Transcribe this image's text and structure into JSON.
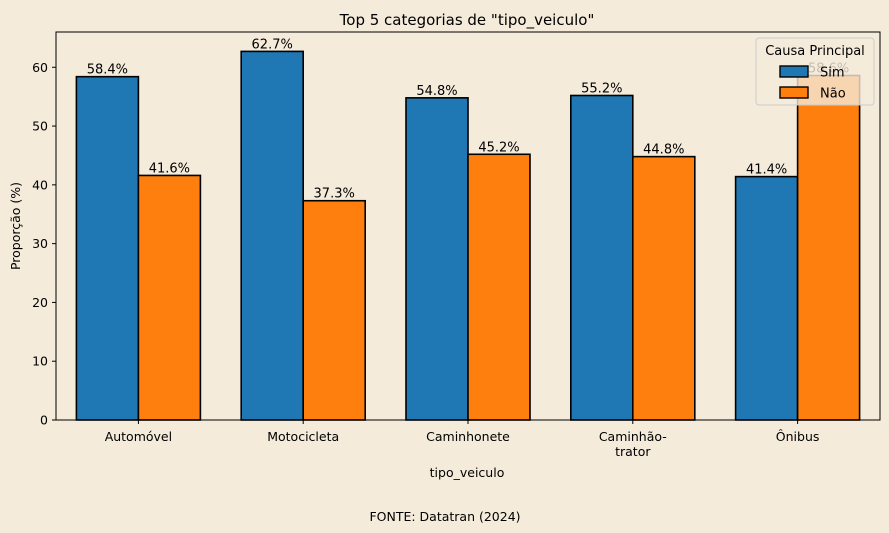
{
  "chart_data": {
    "type": "bar",
    "title": "Top 5 categorias de \"tipo_veiculo\"",
    "xlabel": "tipo_veiculo",
    "ylabel": "Proporção (%)",
    "categories": [
      [
        "Automóvel"
      ],
      [
        "Motocicleta"
      ],
      [
        "Caminhonete"
      ],
      [
        "Caminhão-",
        "trator"
      ],
      [
        "Ônibus"
      ]
    ],
    "series": [
      {
        "name": "Sim",
        "color": "#1f77b4",
        "values": [
          58.4,
          62.7,
          54.8,
          55.2,
          41.4
        ],
        "labels": [
          "58.4%",
          "62.7%",
          "54.8%",
          "55.2%",
          "41.4%"
        ]
      },
      {
        "name": "Não",
        "color": "#ff7f0e",
        "values": [
          41.6,
          37.3,
          45.2,
          44.8,
          58.6
        ],
        "labels": [
          "41.6%",
          "37.3%",
          "45.2%",
          "44.8%",
          "58.6%"
        ]
      }
    ],
    "ylim": [
      0,
      66
    ],
    "yticks": [
      0,
      10,
      20,
      30,
      40,
      50,
      60
    ],
    "legend": {
      "title": "Causa Principal",
      "placement": "top-right"
    },
    "grid": false
  },
  "source_note": "FONTE: Datatran (2024)"
}
